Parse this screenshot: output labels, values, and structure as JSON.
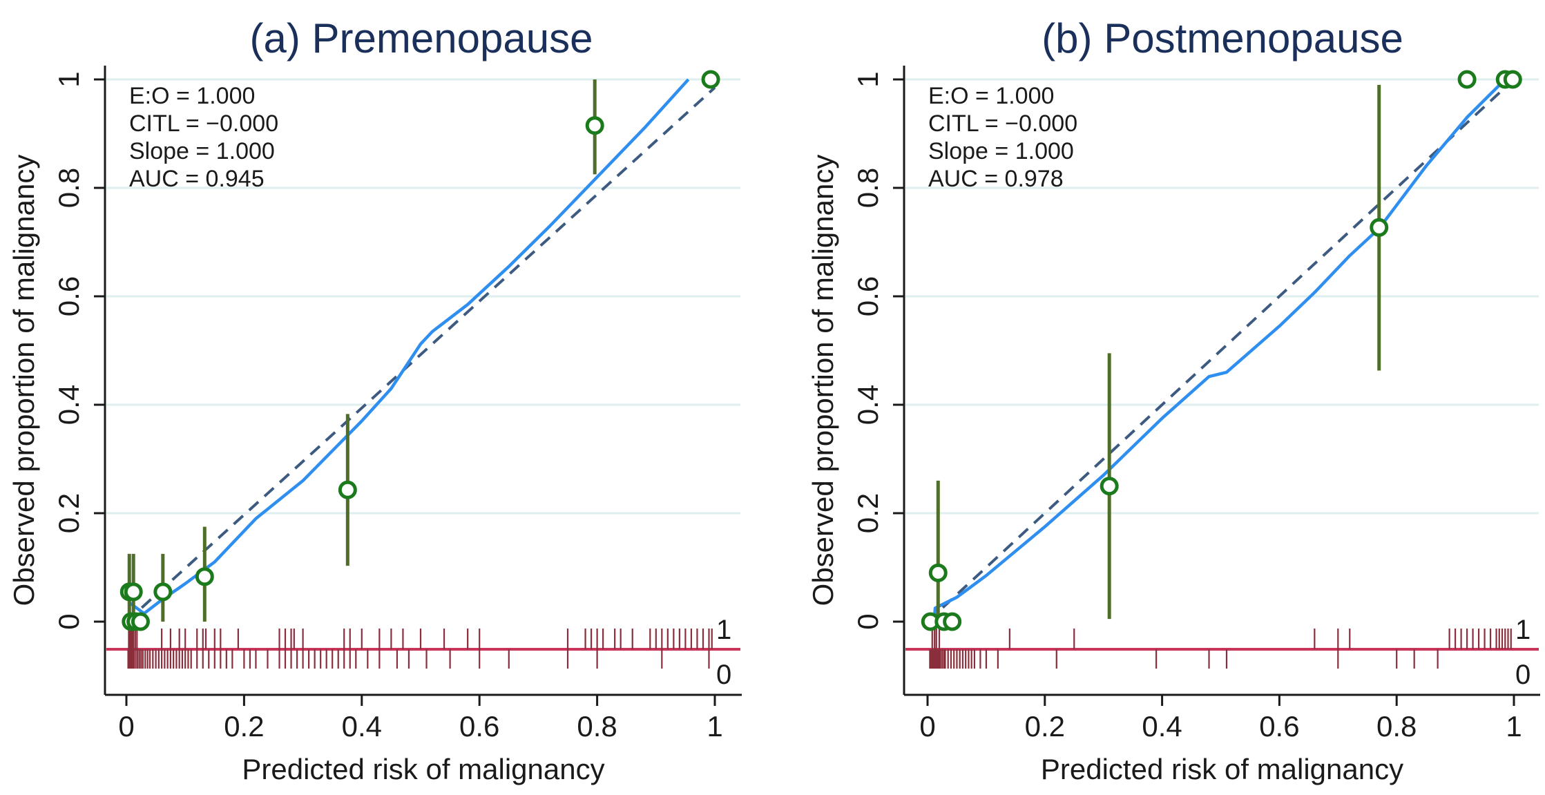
{
  "colors": {
    "grid": "#dfeeee",
    "axis": "#1a1a1a",
    "ci": "#4f6e2a",
    "point": "#1b7a1b",
    "smooth": "#2f8ff0",
    "reference": "#3d5a80",
    "rug": "#8a2e3b",
    "rug_line": "#c8345a",
    "title": "#1a2f5a"
  },
  "chart_data": [
    {
      "type": "scatter",
      "title": "(a) Premenopause",
      "xlabel": "Predicted risk of malignancy",
      "ylabel": "Observed proportion of malignancy",
      "xlim": [
        0,
        1
      ],
      "ylim": [
        -0.1,
        1
      ],
      "xticks": [
        "0",
        "0.2",
        "0.4",
        "0.6",
        "0.8",
        "1"
      ],
      "yticks": [
        "0",
        "0.2",
        "0.4",
        "0.6",
        "0.8",
        "1"
      ],
      "grid": true,
      "stats": [
        "E:O = 1.000",
        "CITL = −0.000",
        "Slope = 1.000",
        "AUC = 0.945"
      ],
      "rug_labels": [
        "1",
        "0"
      ],
      "points": [
        {
          "x": 0.005,
          "y": 0.055,
          "lo": 0.0,
          "hi": 0.125
        },
        {
          "x": 0.012,
          "y": 0.055,
          "lo": 0.0,
          "hi": 0.125
        },
        {
          "x": 0.008,
          "y": 0.0,
          "lo": 0.0,
          "hi": 0.0
        },
        {
          "x": 0.016,
          "y": 0.0,
          "lo": 0.0,
          "hi": 0.0
        },
        {
          "x": 0.024,
          "y": 0.0,
          "lo": 0.0,
          "hi": 0.0
        },
        {
          "x": 0.062,
          "y": 0.055,
          "lo": 0.0,
          "hi": 0.125
        },
        {
          "x": 0.133,
          "y": 0.083,
          "lo": 0.0,
          "hi": 0.175
        },
        {
          "x": 0.376,
          "y": 0.243,
          "lo": 0.103,
          "hi": 0.383
        },
        {
          "x": 0.796,
          "y": 0.915,
          "lo": 0.825,
          "hi": 1.0
        },
        {
          "x": 0.993,
          "y": 1.0,
          "lo": 1.0,
          "hi": 1.0
        }
      ],
      "smooth": [
        {
          "x": 0.005,
          "y": 0.035
        },
        {
          "x": 0.03,
          "y": 0.015
        },
        {
          "x": 0.06,
          "y": 0.04
        },
        {
          "x": 0.1,
          "y": 0.07
        },
        {
          "x": 0.15,
          "y": 0.11
        },
        {
          "x": 0.22,
          "y": 0.19
        },
        {
          "x": 0.3,
          "y": 0.26
        },
        {
          "x": 0.35,
          "y": 0.315
        },
        {
          "x": 0.4,
          "y": 0.37
        },
        {
          "x": 0.45,
          "y": 0.43
        },
        {
          "x": 0.5,
          "y": 0.512
        },
        {
          "x": 0.52,
          "y": 0.535
        },
        {
          "x": 0.58,
          "y": 0.585
        },
        {
          "x": 0.65,
          "y": 0.655
        },
        {
          "x": 0.72,
          "y": 0.73
        },
        {
          "x": 0.8,
          "y": 0.82
        },
        {
          "x": 0.88,
          "y": 0.91
        },
        {
          "x": 0.955,
          "y": 1.0
        }
      ],
      "reference": [
        {
          "x": 0.0,
          "y": 0.0
        },
        {
          "x": 1.0,
          "y": 0.985
        }
      ],
      "rug_events": [
        0.004,
        0.006,
        0.008,
        0.01,
        0.012,
        0.015,
        0.018,
        0.06,
        0.075,
        0.09,
        0.1,
        0.12,
        0.13,
        0.135,
        0.15,
        0.16,
        0.19,
        0.26,
        0.27,
        0.28,
        0.285,
        0.3,
        0.37,
        0.38,
        0.4,
        0.43,
        0.45,
        0.47,
        0.5,
        0.54,
        0.58,
        0.6,
        0.75,
        0.78,
        0.79,
        0.8,
        0.81,
        0.83,
        0.84,
        0.86,
        0.89,
        0.9,
        0.91,
        0.92,
        0.93,
        0.94,
        0.95,
        0.96,
        0.97,
        0.98,
        0.99,
        0.995
      ],
      "rug_nonevents": [
        0.003,
        0.005,
        0.007,
        0.009,
        0.011,
        0.013,
        0.016,
        0.019,
        0.022,
        0.025,
        0.028,
        0.032,
        0.036,
        0.04,
        0.045,
        0.05,
        0.055,
        0.06,
        0.065,
        0.07,
        0.075,
        0.08,
        0.085,
        0.09,
        0.095,
        0.1,
        0.105,
        0.11,
        0.12,
        0.13,
        0.14,
        0.15,
        0.16,
        0.17,
        0.18,
        0.2,
        0.21,
        0.22,
        0.24,
        0.26,
        0.27,
        0.28,
        0.29,
        0.3,
        0.31,
        0.32,
        0.33,
        0.34,
        0.35,
        0.36,
        0.37,
        0.38,
        0.39,
        0.41,
        0.43,
        0.46,
        0.48,
        0.51,
        0.55,
        0.6,
        0.65,
        0.75,
        0.8,
        0.91,
        0.99
      ]
    },
    {
      "type": "scatter",
      "title": "(b) Postmenopause",
      "xlabel": "Predicted risk of malignancy",
      "ylabel": "Observed proportion of malignancy",
      "xlim": [
        0,
        1
      ],
      "ylim": [
        -0.1,
        1
      ],
      "xticks": [
        "0",
        "0.2",
        "0.4",
        "0.6",
        "0.8",
        "1"
      ],
      "yticks": [
        "0",
        "0.2",
        "0.4",
        "0.6",
        "0.8",
        "1"
      ],
      "grid": true,
      "stats": [
        "E:O = 1.000",
        "CITL = −0.000",
        "Slope = 1.000",
        "AUC = 0.978"
      ],
      "rug_labels": [
        "1",
        "0"
      ],
      "points": [
        {
          "x": 0.005,
          "y": 0.0,
          "lo": 0.0,
          "hi": 0.0
        },
        {
          "x": 0.018,
          "y": 0.09,
          "lo": 0.0,
          "hi": 0.26
        },
        {
          "x": 0.028,
          "y": 0.0,
          "lo": 0.0,
          "hi": 0.0
        },
        {
          "x": 0.042,
          "y": 0.0,
          "lo": 0.0,
          "hi": 0.0
        },
        {
          "x": 0.31,
          "y": 0.25,
          "lo": 0.005,
          "hi": 0.495
        },
        {
          "x": 0.77,
          "y": 0.727,
          "lo": 0.463,
          "hi": 0.99
        },
        {
          "x": 0.92,
          "y": 1.0,
          "lo": 1.0,
          "hi": 1.0
        },
        {
          "x": 0.985,
          "y": 1.0,
          "lo": 1.0,
          "hi": 1.0
        },
        {
          "x": 0.998,
          "y": 1.0,
          "lo": 1.0,
          "hi": 1.0
        }
      ],
      "smooth": [
        {
          "x": 0.012,
          "y": 0.01
        },
        {
          "x": 0.013,
          "y": 0.025
        },
        {
          "x": 0.05,
          "y": 0.045
        },
        {
          "x": 0.1,
          "y": 0.085
        },
        {
          "x": 0.2,
          "y": 0.175
        },
        {
          "x": 0.3,
          "y": 0.27
        },
        {
          "x": 0.4,
          "y": 0.375
        },
        {
          "x": 0.48,
          "y": 0.452
        },
        {
          "x": 0.51,
          "y": 0.46
        },
        {
          "x": 0.6,
          "y": 0.545
        },
        {
          "x": 0.66,
          "y": 0.607
        },
        {
          "x": 0.72,
          "y": 0.675
        },
        {
          "x": 0.77,
          "y": 0.725
        },
        {
          "x": 0.85,
          "y": 0.84
        },
        {
          "x": 0.92,
          "y": 0.93
        },
        {
          "x": 0.985,
          "y": 1.0
        }
      ],
      "reference": [
        {
          "x": 0.0,
          "y": 0.0
        },
        {
          "x": 1.0,
          "y": 1.0
        }
      ],
      "rug_events": [
        0.008,
        0.012,
        0.015,
        0.02,
        0.14,
        0.25,
        0.66,
        0.7,
        0.72,
        0.89,
        0.9,
        0.91,
        0.92,
        0.93,
        0.94,
        0.95,
        0.96,
        0.97,
        0.975,
        0.98,
        0.985,
        0.99,
        0.995
      ],
      "rug_nonevents": [
        0.004,
        0.006,
        0.008,
        0.01,
        0.012,
        0.014,
        0.016,
        0.018,
        0.02,
        0.022,
        0.025,
        0.028,
        0.03,
        0.035,
        0.04,
        0.045,
        0.05,
        0.055,
        0.06,
        0.065,
        0.07,
        0.075,
        0.08,
        0.09,
        0.1,
        0.12,
        0.22,
        0.39,
        0.48,
        0.51,
        0.7,
        0.8,
        0.83,
        0.87
      ]
    }
  ]
}
